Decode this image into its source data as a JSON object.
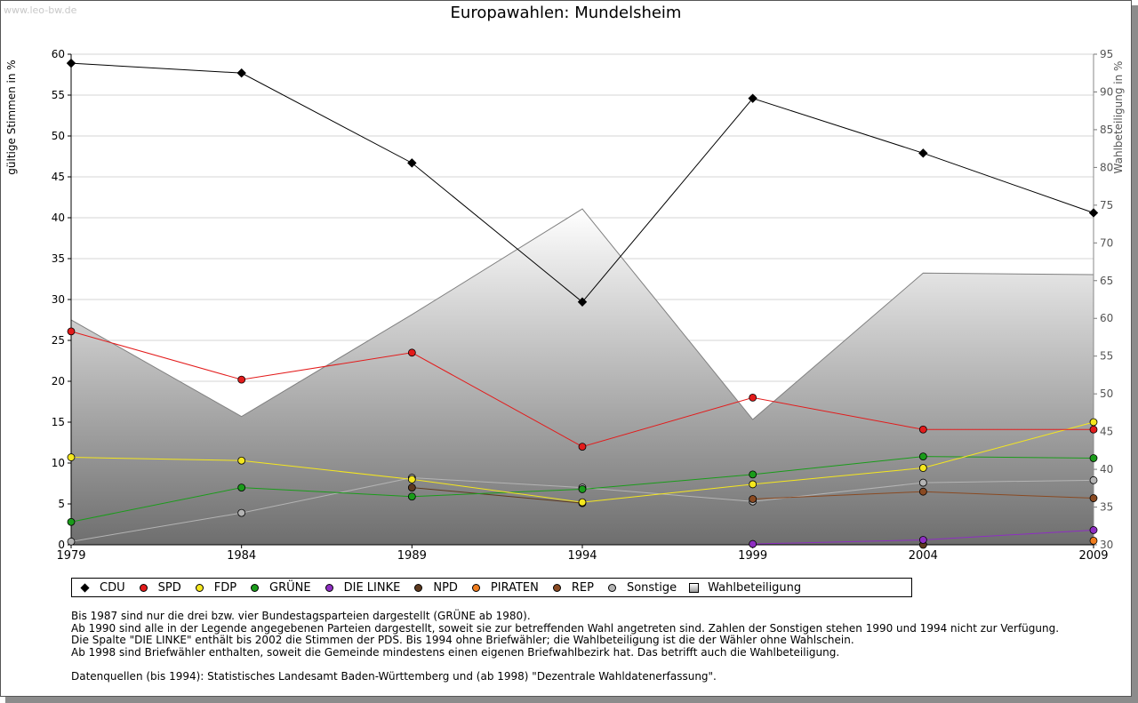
{
  "header": {
    "watermark": "www.leo-bw.de",
    "title": "Europawahlen: Mundelsheim"
  },
  "chart_data": {
    "type": "line",
    "title": "Europawahlen: Mundelsheim",
    "x": [
      1979,
      1984,
      1989,
      1994,
      1999,
      2004,
      2009
    ],
    "ylabel": "gültige Stimmen in %",
    "y2label": "Wahlbeteiligung in %",
    "ylim": [
      0,
      60
    ],
    "y2lim": [
      30,
      95
    ],
    "yticks": [
      0,
      5,
      10,
      15,
      20,
      25,
      30,
      35,
      40,
      45,
      50,
      55,
      60
    ],
    "y2ticks": [
      30,
      35,
      40,
      45,
      50,
      55,
      60,
      65,
      70,
      75,
      80,
      85,
      90,
      95
    ],
    "grid": true,
    "legend_position": "bottom",
    "series": [
      {
        "name": "CDU",
        "color": "#000000",
        "marker": "diamond",
        "values": [
          58.9,
          57.7,
          46.7,
          29.7,
          54.6,
          47.9,
          40.6
        ]
      },
      {
        "name": "SPD",
        "color": "#e31b1b",
        "marker": "circle",
        "values": [
          26.1,
          20.2,
          23.5,
          12.0,
          18.0,
          14.1,
          14.1
        ]
      },
      {
        "name": "FDP",
        "color": "#f5e71e",
        "marker": "circle",
        "values": [
          10.7,
          10.3,
          8.0,
          5.2,
          7.4,
          9.4,
          15.0
        ]
      },
      {
        "name": "GRÜNE",
        "color": "#1a9c1a",
        "marker": "circle",
        "values": [
          2.8,
          7.0,
          5.9,
          6.8,
          8.6,
          10.8,
          10.6
        ]
      },
      {
        "name": "DIE LINKE",
        "color": "#8e2ec2",
        "marker": "circle",
        "values": [
          null,
          null,
          null,
          null,
          0.1,
          0.6,
          1.8
        ]
      },
      {
        "name": "NPD",
        "color": "#5e3a1f",
        "marker": "circle",
        "values": [
          null,
          null,
          7.0,
          5.1,
          null,
          0.0,
          null
        ]
      },
      {
        "name": "PIRATEN",
        "color": "#f07d1e",
        "marker": "circle",
        "values": [
          null,
          null,
          null,
          null,
          null,
          null,
          0.5
        ]
      },
      {
        "name": "REP",
        "color": "#8a4a22",
        "marker": "circle",
        "values": [
          null,
          null,
          null,
          null,
          5.6,
          6.5,
          5.7
        ]
      },
      {
        "name": "Sonstige",
        "color": "#b4b4b4",
        "marker": "circle",
        "values": [
          0.4,
          3.9,
          8.2,
          7.0,
          5.3,
          7.6,
          7.9
        ]
      },
      {
        "name": "Wahlbeteiligung",
        "color": "#808080",
        "marker": "square",
        "axis": "right",
        "type": "area",
        "values": [
          59.8,
          47.0,
          60.5,
          74.5,
          46.6,
          66.0,
          65.8
        ]
      }
    ]
  },
  "notes": [
    "Bis 1987 sind nur die drei bzw. vier Bundestagsparteien dargestellt (GRÜNE ab 1980).",
    "Ab 1990 sind alle in der Legende angegebenen Parteien dargestellt, soweit sie zur betreffenden Wahl angetreten sind. Zahlen der Sonstigen stehen 1990 und 1994 nicht zur Verfügung.",
    "Die Spalte \"DIE LINKE\" enthält bis 2002 die Stimmen der PDS. Bis 1994 ohne Briefwähler; die Wahlbeteiligung ist die der Wähler ohne Wahlschein.",
    "Ab 1998 sind Briefwähler enthalten, soweit die Gemeinde mindestens einen eigenen Briefwahlbezirk hat. Das betrifft auch die Wahlbeteiligung."
  ],
  "source": "Datenquellen (bis 1994): Statistisches Landesamt Baden-Württemberg und (ab 1998) \"Dezentrale Wahldatenerfassung\"."
}
